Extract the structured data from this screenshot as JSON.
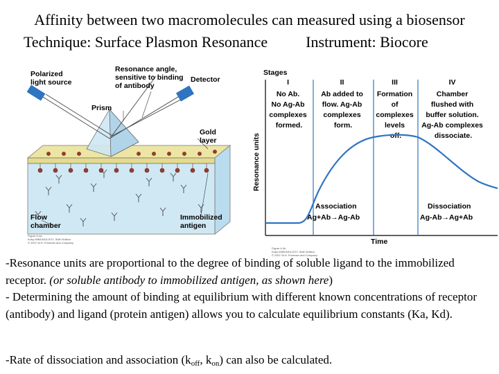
{
  "title_line1": "Affinity between two macromolecules can measured using a biosensor",
  "title_line2": "Technique: Surface Plasmon Resonance          Instrument: Biocore",
  "diagram": {
    "polarized": [
      "Polarized",
      "light source"
    ],
    "resonance_angle": [
      "Resonance angle,",
      "sensitive to binding",
      "of antibody"
    ],
    "detector": "Detector",
    "prism": "Prism",
    "gold_layer": [
      "Gold",
      "layer"
    ],
    "flow_chamber": [
      "Flow",
      "chamber"
    ],
    "immobilized_antigen": [
      "Immobilized",
      "antigen"
    ],
    "figure_note": [
      "Figure 6-4a",
      "Kuby IMMUNOLOGY, Sixth Edition",
      "© 2007 W.H. Freeman and Company"
    ]
  },
  "graph": {
    "stages_label": "Stages",
    "ylabel": "Resonance units",
    "xlabel": "Time",
    "stages": [
      {
        "numeral": "I",
        "lines": [
          "No Ab.",
          "No Ag-Ab",
          "complexes",
          "formed."
        ]
      },
      {
        "numeral": "II",
        "lines": [
          "Ab added to",
          "flow. Ag-Ab",
          "complexes",
          "form."
        ]
      },
      {
        "numeral": "III",
        "lines": [
          "Formation",
          "of",
          "complexes",
          "levels",
          "off."
        ]
      },
      {
        "numeral": "IV",
        "lines": [
          "Chamber",
          "flushed with",
          "buffer solution.",
          "Ag-Ab complexes",
          "dissociate."
        ]
      }
    ],
    "association_title": "Association",
    "association_eq": "Ag+Ab→Ag-Ab",
    "dissociation_title": "Dissociation",
    "dissociation_eq": "Ag-Ab→Ag+Ab",
    "figure_note": [
      "Figure 6-4b",
      "Kuby IMMUNOLOGY, Sixth Edition",
      "© 2007 W.H. Freeman and Company"
    ]
  },
  "text": {
    "p1_main": "-Resonance units are proportional to the degree of binding of soluble ligand to the immobilized receptor. ",
    "p1_italic": "(or soluble antibody to immobilized antigen, as shown here",
    "p1_end": ")",
    "p2": "- Determining the amount of binding at equilibrium with different known concentrations of receptor (antibody) and ligand (protein antigen) allows you to calculate equilibrium constants (Ka, Kd).",
    "p3_a": "-Rate of dissociation and association (k",
    "p3_sub1": "off",
    "p3_b": ", k",
    "p3_sub2": "on",
    "p3_c": ") can also be calculated."
  },
  "colors": {
    "accent_blue": "#2f74c0",
    "chamber": "#cfe8f4",
    "gold": "#ece5a4",
    "antigen": "#9b3b2b"
  }
}
